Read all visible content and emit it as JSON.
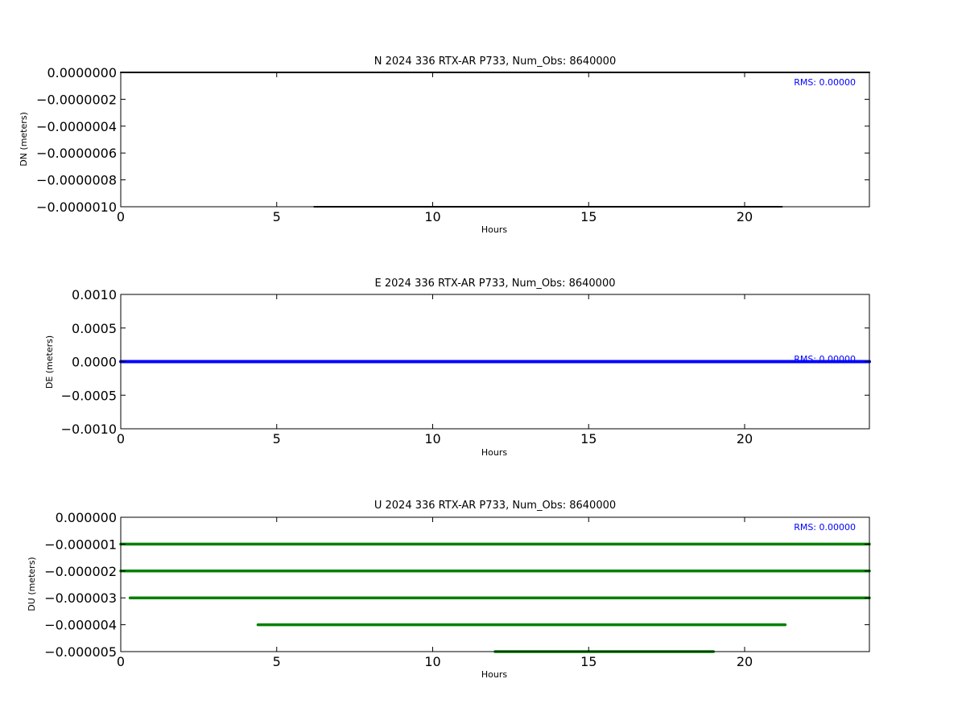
{
  "colors": {
    "n_series": "#000000",
    "e_series": "#0000ff",
    "u_series": "#008000",
    "rms_text": "#0000ff"
  },
  "chart_data": [
    {
      "type": "line",
      "title": "N 2024 336 RTX-AR  P733, Num_Obs: 8640000",
      "xlabel": "Hours",
      "ylabel": "DN (meters)",
      "xlim": [
        0,
        24
      ],
      "ylim": [
        -1e-06,
        0
      ],
      "xticks": [
        "0",
        "5",
        "10",
        "15",
        "20"
      ],
      "yticks": [
        "0.0000000",
        "−0.0000002",
        "−0.0000004",
        "−0.0000006",
        "−0.0000008",
        "−0.0000010"
      ],
      "annotation": "RMS:  0.00000",
      "grid": false,
      "series": [
        {
          "values_note": "points at 0 and -0.000001",
          "segments": [
            {
              "y": 0.0,
              "x": [
                0,
                24
              ]
            },
            {
              "y": -1e-06,
              "x": [
                6.2,
                21.2
              ]
            }
          ]
        }
      ]
    },
    {
      "type": "line",
      "title": "E 2024 336 RTX-AR  P733, Num_Obs: 8640000",
      "xlabel": "Hours",
      "ylabel": "DE (meters)",
      "xlim": [
        0,
        24
      ],
      "ylim": [
        -0.001,
        0.001
      ],
      "xticks": [
        "0",
        "5",
        "10",
        "15",
        "20"
      ],
      "yticks": [
        "0.0010",
        "0.0005",
        "0.0000",
        "−0.0005",
        "−0.0010"
      ],
      "annotation": "RMS:  0.00000",
      "grid": false,
      "series": [
        {
          "segments": [
            {
              "y": 0.0,
              "x": [
                0,
                24
              ]
            }
          ]
        }
      ]
    },
    {
      "type": "line",
      "title": "U 2024 336 RTX-AR  P733, Num_Obs: 8640000",
      "xlabel": "Hours",
      "ylabel": "DU (meters)",
      "xlim": [
        0,
        24
      ],
      "ylim": [
        -5e-06,
        0
      ],
      "xticks": [
        "0",
        "5",
        "10",
        "15",
        "20"
      ],
      "yticks": [
        "0.000000",
        "−0.000001",
        "−0.000002",
        "−0.000003",
        "−0.000004",
        "−0.000005"
      ],
      "annotation": "RMS:  0.00000",
      "grid": false,
      "series": [
        {
          "segments": [
            {
              "y": -1e-06,
              "x": [
                0,
                24
              ]
            },
            {
              "y": -2e-06,
              "x": [
                0,
                24
              ]
            },
            {
              "y": -3e-06,
              "x": [
                0.3,
                24
              ]
            },
            {
              "y": -4e-06,
              "x": [
                4.4,
                21.3
              ]
            },
            {
              "y": -5e-06,
              "x": [
                12.0,
                19.0
              ]
            }
          ]
        }
      ]
    }
  ]
}
